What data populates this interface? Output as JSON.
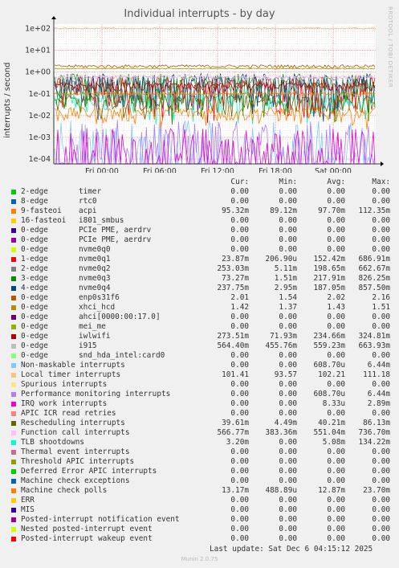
{
  "title": "Individual interrupts - by day",
  "side_text": "RRDTOOL / TOBI OETIKER",
  "footer": "Munin 2.0.75",
  "last_update": "Last update: Sat Dec  6 04:15:12 2025",
  "columns": {
    "cur": "Cur:",
    "min": "Min:",
    "avg": "Avg:",
    "max": "Max:"
  },
  "chart_data": {
    "type": "line",
    "title": "Individual interrupts - by day",
    "ylabel": "interrupts / second",
    "yscale": "log",
    "ylim": [
      6e-05,
      160
    ],
    "y_ticks": [
      "1e-04",
      "1e-03",
      "1e-02",
      "1e-01",
      "1e+00",
      "1e+01",
      "1e+02"
    ],
    "x_ticks": [
      "Fri 00:00",
      "Fri 06:00",
      "Fri 12:00",
      "Fri 18:00",
      "Sat 00:00"
    ],
    "grid": true,
    "series": [
      {
        "name": "2-edge",
        "device": "timer",
        "color": "#00cc00",
        "cur": "0.00",
        "min": "0.00",
        "avg": "0.00",
        "max": "0.00"
      },
      {
        "name": "8-edge",
        "device": "rtc0",
        "color": "#0066b3",
        "cur": "0.00",
        "min": "0.00",
        "avg": "0.00",
        "max": "0.00"
      },
      {
        "name": "9-fasteoi",
        "device": "acpi",
        "color": "#ff8000",
        "cur": "95.32m",
        "min": "89.12m",
        "avg": "97.70m",
        "max": "112.35m"
      },
      {
        "name": "16-fasteoi",
        "device": "i801_smbus",
        "color": "#ffcc00",
        "cur": "0.00",
        "min": "0.00",
        "avg": "0.00",
        "max": "0.00"
      },
      {
        "name": "0-edge",
        "device": "PCIe PME, aerdrv",
        "color": "#330099",
        "cur": "0.00",
        "min": "0.00",
        "avg": "0.00",
        "max": "0.00"
      },
      {
        "name": "0-edge",
        "device": "PCIe PME, aerdrv",
        "color": "#990099",
        "cur": "0.00",
        "min": "0.00",
        "avg": "0.00",
        "max": "0.00"
      },
      {
        "name": "0-edge",
        "device": "nvme0q0",
        "color": "#ccff00",
        "cur": "0.00",
        "min": "0.00",
        "avg": "0.00",
        "max": "0.00"
      },
      {
        "name": "1-edge",
        "device": "nvme0q1",
        "color": "#ff0000",
        "cur": "23.87m",
        "min": "206.90u",
        "avg": "152.42m",
        "max": "686.91m"
      },
      {
        "name": "2-edge",
        "device": "nvme0q2",
        "color": "#808080",
        "cur": "253.03m",
        "min": "5.11m",
        "avg": "198.65m",
        "max": "662.67m"
      },
      {
        "name": "3-edge",
        "device": "nvme0q3",
        "color": "#008f00",
        "cur": "73.27m",
        "min": "1.51m",
        "avg": "217.91m",
        "max": "826.25m"
      },
      {
        "name": "4-edge",
        "device": "nvme0q4",
        "color": "#00487d",
        "cur": "237.75m",
        "min": "2.95m",
        "avg": "187.05m",
        "max": "857.50m"
      },
      {
        "name": "0-edge",
        "device": "enp0s31f6",
        "color": "#b35a00",
        "cur": "2.01",
        "min": "1.54",
        "avg": "2.02",
        "max": "2.16"
      },
      {
        "name": "0-edge",
        "device": "xhci_hcd",
        "color": "#b38f00",
        "cur": "1.42",
        "min": "1.37",
        "avg": "1.43",
        "max": "1.51"
      },
      {
        "name": "0-edge",
        "device": "ahci[0000:00:17.0]",
        "color": "#6b006b",
        "cur": "0.00",
        "min": "0.00",
        "avg": "0.00",
        "max": "0.00"
      },
      {
        "name": "0-edge",
        "device": "mei_me",
        "color": "#8fb300",
        "cur": "0.00",
        "min": "0.00",
        "avg": "0.00",
        "max": "0.00"
      },
      {
        "name": "0-edge",
        "device": "iwlwifi",
        "color": "#b30000",
        "cur": "273.51m",
        "min": "71.93m",
        "avg": "234.66m",
        "max": "324.81m"
      },
      {
        "name": "0-edge",
        "device": "i915",
        "color": "#bebebe",
        "cur": "564.40m",
        "min": "455.76m",
        "avg": "559.23m",
        "max": "663.93m"
      },
      {
        "name": "0-edge",
        "device": "snd_hda_intel:card0",
        "color": "#80ff80",
        "cur": "0.00",
        "min": "0.00",
        "avg": "0.00",
        "max": "0.00"
      },
      {
        "name": "Non-maskable interrupts",
        "device": "",
        "color": "#80c9ff",
        "cur": "0.00",
        "min": "0.00",
        "avg": "608.70u",
        "max": "6.44m"
      },
      {
        "name": "Local timer interrupts",
        "device": "",
        "color": "#ffc080",
        "cur": "101.41",
        "min": "93.57",
        "avg": "102.21",
        "max": "111.18"
      },
      {
        "name": "Spurious interrupts",
        "device": "",
        "color": "#ffe680",
        "cur": "0.00",
        "min": "0.00",
        "avg": "0.00",
        "max": "0.00"
      },
      {
        "name": "Performance monitoring interrupts",
        "device": "",
        "color": "#aa80ff",
        "cur": "0.00",
        "min": "0.00",
        "avg": "608.70u",
        "max": "6.44m"
      },
      {
        "name": "IRQ work interrupts",
        "device": "",
        "color": "#ee00cc",
        "cur": "0.00",
        "min": "0.00",
        "avg": "8.33u",
        "max": "2.89m"
      },
      {
        "name": "APIC ICR read retries",
        "device": "",
        "color": "#ff8080",
        "cur": "0.00",
        "min": "0.00",
        "avg": "0.00",
        "max": "0.00"
      },
      {
        "name": "Rescheduling interrupts",
        "device": "",
        "color": "#666600",
        "cur": "39.61m",
        "min": "4.49m",
        "avg": "40.21m",
        "max": "86.13m"
      },
      {
        "name": "Function call interrupts",
        "device": "",
        "color": "#ffbfff",
        "cur": "566.77m",
        "min": "383.36m",
        "avg": "551.04m",
        "max": "736.70m"
      },
      {
        "name": "TLB shootdowns",
        "device": "",
        "color": "#00ffcc",
        "cur": "3.20m",
        "min": "0.00",
        "avg": "5.08m",
        "max": "134.22m"
      },
      {
        "name": "Thermal event interrupts",
        "device": "",
        "color": "#cc6699",
        "cur": "0.00",
        "min": "0.00",
        "avg": "0.00",
        "max": "0.00"
      },
      {
        "name": "Threshold APIC interrupts",
        "device": "",
        "color": "#999900",
        "cur": "0.00",
        "min": "0.00",
        "avg": "0.00",
        "max": "0.00"
      },
      {
        "name": "Deferred Error APIC interrupts",
        "device": "",
        "color": "#00cc00",
        "cur": "0.00",
        "min": "0.00",
        "avg": "0.00",
        "max": "0.00"
      },
      {
        "name": "Machine check exceptions",
        "device": "",
        "color": "#0066b3",
        "cur": "0.00",
        "min": "0.00",
        "avg": "0.00",
        "max": "0.00"
      },
      {
        "name": "Machine check polls",
        "device": "",
        "color": "#ff8000",
        "cur": "13.17m",
        "min": "488.89u",
        "avg": "12.87m",
        "max": "23.70m"
      },
      {
        "name": "ERR",
        "device": "",
        "color": "#ffcc00",
        "cur": "0.00",
        "min": "0.00",
        "avg": "0.00",
        "max": "0.00"
      },
      {
        "name": "MIS",
        "device": "",
        "color": "#330099",
        "cur": "0.00",
        "min": "0.00",
        "avg": "0.00",
        "max": "0.00"
      },
      {
        "name": "Posted-interrupt notification event",
        "device": "",
        "color": "#990099",
        "cur": "0.00",
        "min": "0.00",
        "avg": "0.00",
        "max": "0.00"
      },
      {
        "name": "Nested posted-interrupt event",
        "device": "",
        "color": "#ccff00",
        "cur": "0.00",
        "min": "0.00",
        "avg": "0.00",
        "max": "0.00"
      },
      {
        "name": "Posted-interrupt wakeup event",
        "device": "",
        "color": "#ff0000",
        "cur": "0.00",
        "min": "0.00",
        "avg": "0.00",
        "max": "0.00"
      }
    ]
  }
}
